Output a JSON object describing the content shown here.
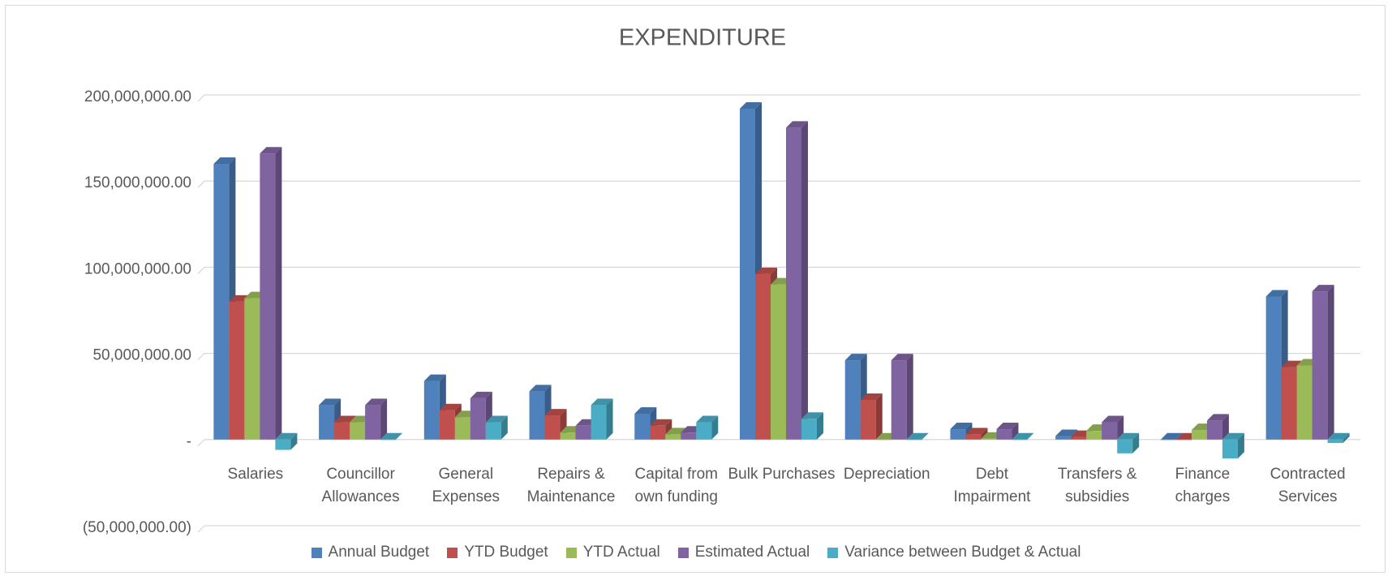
{
  "chart_data": {
    "type": "bar3d",
    "title": "EXPENDITURE",
    "categories": [
      "Salaries",
      "Councillor Allowances",
      "General Expenses",
      "Repairs & Maintenance",
      "Capital from own funding",
      "Bulk Purchases",
      "Depreciation",
      "Debt Impairment",
      "Transfers & subsidies",
      "Finance charges",
      "Contracted Services"
    ],
    "series": [
      {
        "name": "Annual Budget",
        "color": "#4f81bd",
        "values": [
          160000000,
          20000000,
          34000000,
          28000000,
          15000000,
          192000000,
          46000000,
          6000000,
          2000000,
          0,
          83000000
        ]
      },
      {
        "name": "YTD Budget",
        "color": "#c0504d",
        "values": [
          80000000,
          10000000,
          17000000,
          14000000,
          8000000,
          96000000,
          23000000,
          3000000,
          1500000,
          0,
          42000000
        ]
      },
      {
        "name": "YTD Actual",
        "color": "#9bbb59",
        "values": [
          82000000,
          10000000,
          13000000,
          4000000,
          3000000,
          90000000,
          0,
          500000,
          5000000,
          5500000,
          43000000
        ]
      },
      {
        "name": "Estimated Actual",
        "color": "#8064a2",
        "values": [
          166000000,
          20000000,
          24000000,
          8000000,
          4000000,
          181000000,
          46000000,
          6000000,
          10000000,
          11000000,
          86000000
        ]
      },
      {
        "name": "Variance between Budget & Actual",
        "color": "#4bacc6",
        "values": [
          -6000000,
          0,
          10000000,
          20000000,
          10000000,
          12000000,
          0,
          0,
          -8000000,
          -11000000,
          -2000000
        ]
      }
    ],
    "ylim": [
      -50000000,
      200000000
    ],
    "yticks": [
      {
        "value": -50000000,
        "label": "(50,000,000.00)"
      },
      {
        "value": 0,
        "label": "-"
      },
      {
        "value": 50000000,
        "label": "50,000,000.00"
      },
      {
        "value": 100000000,
        "label": "100,000,000.00"
      },
      {
        "value": 150000000,
        "label": "150,000,000.00"
      },
      {
        "value": 200000000,
        "label": "200,000,000.00"
      }
    ],
    "grid": true,
    "legend": "bottom"
  }
}
